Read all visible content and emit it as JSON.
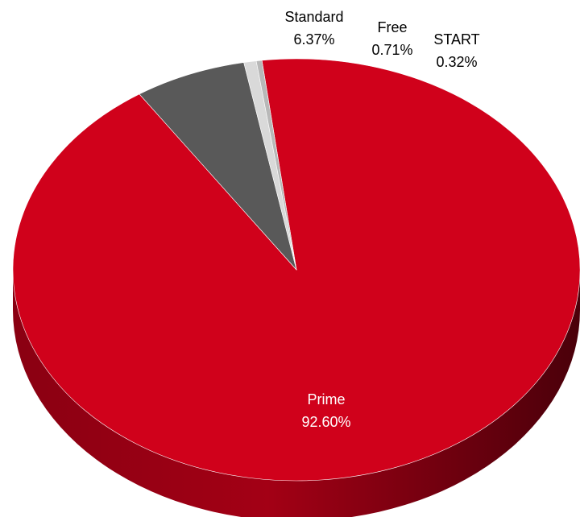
{
  "chart_data": {
    "type": "pie",
    "title": "",
    "slices": [
      {
        "name": "Prime",
        "value": 92.6,
        "label": "92.60%",
        "color": "#d0011b",
        "label_color": "#ffffff"
      },
      {
        "name": "Standard",
        "value": 6.37,
        "label": "6.37%",
        "color": "#595959",
        "label_color": "#000000"
      },
      {
        "name": "Free",
        "value": 0.71,
        "label": "0.71%",
        "color": "#d9d9d9",
        "label_color": "#000000"
      },
      {
        "name": "START",
        "value": 0.32,
        "label": "0.32%",
        "color": "#b8b8b8",
        "label_color": "#000000"
      }
    ],
    "style": "3d",
    "legend": "none"
  }
}
